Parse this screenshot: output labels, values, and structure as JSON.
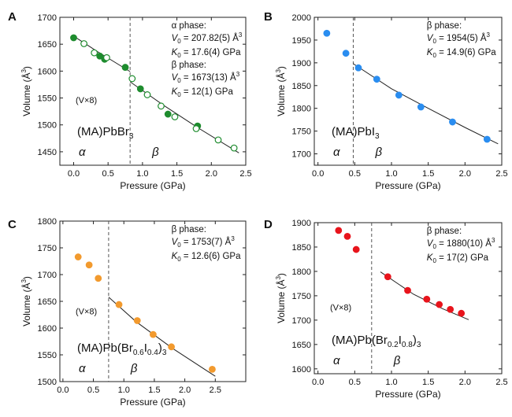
{
  "chart_data": [
    {
      "type": "scatter",
      "panel_label": "A",
      "xlabel": "Pressure (GPa)",
      "ylabel": "Volume (Å",
      "ylabel_sup": "3",
      "ylabel_close": ")",
      "xlim": [
        -0.2,
        2.5
      ],
      "ylim": [
        1425,
        1700
      ],
      "x_ticks": [
        0.0,
        0.5,
        1.0,
        1.5,
        2.0,
        2.5
      ],
      "y_ticks": [
        1450,
        1500,
        1550,
        1600,
        1650,
        1700
      ],
      "phase_boundary_x": 0.82,
      "series": [
        {
          "marker": "filled",
          "color": "#1e8c2e",
          "x": [
            0.0,
            0.38,
            0.45,
            0.75,
            0.97,
            1.37,
            1.8
          ],
          "y": [
            1662,
            1628,
            1622,
            1607,
            1567,
            1520,
            1498
          ]
        },
        {
          "marker": "open",
          "color": "#1e8c2e",
          "x": [
            0.15,
            0.3,
            0.48,
            0.85,
            1.07,
            1.27,
            1.47,
            1.78,
            2.1,
            2.33
          ],
          "y": [
            1651,
            1634,
            1625,
            1586,
            1556,
            1535,
            1515,
            1493,
            1472,
            1457
          ]
        }
      ],
      "fit_lines": [
        {
          "x": [
            0.0,
            0.35,
            0.82
          ],
          "y": [
            1665,
            1636,
            1599
          ]
        },
        {
          "x": [
            0.82,
            1.3,
            1.8,
            2.4
          ],
          "y": [
            1580,
            1537,
            1495,
            1448
          ]
        }
      ],
      "annotations": {
        "phase1": "α phase:",
        "v1_label": "V",
        "v1_sub": "0",
        "v1_value": " = 207.82(5) Å",
        "v1_sup": "3",
        "k1_label": "K",
        "k1_sub": "0",
        "k1_value": " = 17.6(4) GPa",
        "phase2": "β phase:",
        "v2_label": "V",
        "v2_sub": "0",
        "v2_value": " = 1673(13) Å",
        "v2_sup": "3",
        "k2_label": "K",
        "k2_sub": "0",
        "k2_value": " = 12(1) GPa",
        "scale_note": "(V×8)",
        "compound": "(MA)PbBr",
        "compound_sub": "3",
        "alpha": "α",
        "beta": "β"
      }
    },
    {
      "type": "scatter",
      "panel_label": "B",
      "xlabel": "Pressure (GPa)",
      "ylabel": "Volume (Å",
      "ylabel_sup": "3",
      "ylabel_close": ")",
      "xlim": [
        -0.05,
        2.5
      ],
      "ylim": [
        1675,
        2000
      ],
      "x_ticks": [
        0.0,
        0.5,
        1.0,
        1.5,
        2.0,
        2.5
      ],
      "y_ticks": [
        1700,
        1750,
        1800,
        1850,
        1900,
        1950,
        2000
      ],
      "phase_boundary_x": 0.48,
      "series": [
        {
          "marker": "filled",
          "color": "#2a8df0",
          "x": [
            0.12,
            0.38,
            0.55,
            0.8,
            1.1,
            1.4,
            1.83,
            2.3
          ],
          "y": [
            1965,
            1921,
            1889,
            1864,
            1829,
            1803,
            1770,
            1732
          ]
        }
      ],
      "fit_lines": [
        {
          "x": [
            0.48,
            1.0,
            1.5,
            2.0,
            2.45
          ],
          "y": [
            1898,
            1843,
            1800,
            1758,
            1722
          ]
        }
      ],
      "annotations": {
        "phase2": "β phase:",
        "v2_label": "V",
        "v2_sub": "0",
        "v2_value": " = 1954(5) Å",
        "v2_sup": "3",
        "k2_label": "K",
        "k2_sub": "0",
        "k2_value": " = 14.9(6) GPa",
        "compound": "(MA)PbI",
        "compound_sub": "3",
        "alpha": "α",
        "beta": "β"
      }
    },
    {
      "type": "scatter",
      "panel_label": "C",
      "xlabel": "Pressure (GPa)",
      "ylabel": "Volume (Å",
      "ylabel_sup": "3",
      "ylabel_close": ")",
      "xlim": [
        -0.05,
        3.0
      ],
      "ylim": [
        1500,
        1800
      ],
      "x_ticks": [
        0.0,
        0.5,
        1.0,
        1.5,
        2.0,
        2.5
      ],
      "y_ticks": [
        1500,
        1550,
        1600,
        1650,
        1700,
        1750,
        1800
      ],
      "phase_boundary_x": 0.75,
      "series": [
        {
          "marker": "filled",
          "color": "#f29a2e",
          "x": [
            0.25,
            0.43,
            0.58,
            0.92,
            1.22,
            1.48,
            1.78,
            2.45
          ],
          "y": [
            1733,
            1718,
            1693,
            1644,
            1614,
            1588,
            1565,
            1523
          ]
        }
      ],
      "fit_lines": [
        {
          "x": [
            0.75,
            1.2,
            1.8,
            2.5
          ],
          "y": [
            1658,
            1612,
            1562,
            1510
          ]
        }
      ],
      "annotations": {
        "phase2": "β phase:",
        "v2_label": "V",
        "v2_sub": "0",
        "v2_value": " = 1753(7) Å",
        "v2_sup": "3",
        "k2_label": "K",
        "k2_sub": "0",
        "k2_value": " = 12.6(6) GPa",
        "scale_note": "(V×8)",
        "compound_parts": [
          "(MA)Pb(Br",
          "0.6",
          "I",
          "0.4",
          ")",
          "3"
        ],
        "alpha": "α",
        "beta": "β"
      }
    },
    {
      "type": "scatter",
      "panel_label": "D",
      "xlabel": "Pressure (GPa)",
      "ylabel": "Volume (Å",
      "ylabel_sup": "3",
      "ylabel_close": ")",
      "xlim": [
        -0.05,
        2.5
      ],
      "ylim": [
        1590,
        1900
      ],
      "x_ticks": [
        0.0,
        0.5,
        1.0,
        1.5,
        2.0,
        2.5
      ],
      "y_ticks": [
        1600,
        1650,
        1700,
        1750,
        1800,
        1850,
        1900
      ],
      "phase_boundary_x": 0.73,
      "series": [
        {
          "marker": "filled",
          "color": "#e8141c",
          "x": [
            0.28,
            0.4,
            0.52,
            0.95,
            1.22,
            1.48,
            1.65,
            1.8,
            1.95
          ],
          "y": [
            1884,
            1872,
            1845,
            1789,
            1761,
            1743,
            1732,
            1722,
            1714
          ]
        }
      ],
      "fit_lines": [
        {
          "x": [
            0.85,
            1.3,
            1.7,
            2.05
          ],
          "y": [
            1799,
            1753,
            1723,
            1701
          ]
        }
      ],
      "annotations": {
        "phase2": "β phase:",
        "v2_label": "V",
        "v2_sub": "0",
        "v2_value": " = 1880(10) Å",
        "v2_sup": "3",
        "k2_label": "K",
        "k2_sub": "0",
        "k2_value": " = 17(2) GPa",
        "scale_note": "(V×8)",
        "compound_parts": [
          "(MA)Pb(Br",
          "0.2",
          "I",
          "0.8",
          ")",
          "3"
        ],
        "alpha": "α",
        "beta": "β"
      }
    }
  ]
}
